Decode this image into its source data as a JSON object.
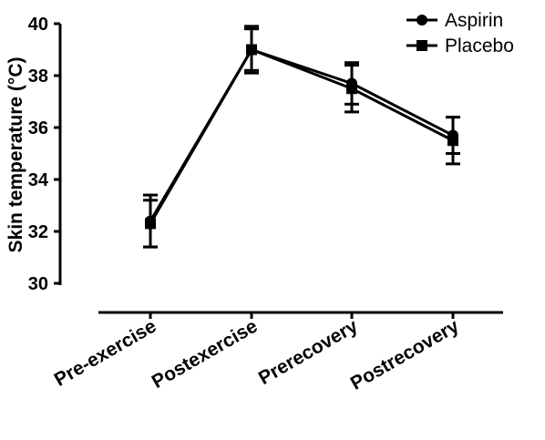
{
  "chart_data": {
    "type": "line",
    "title": "",
    "xlabel": "",
    "ylabel": "Skin temperature (°C)",
    "categories": [
      "Pre-exercise",
      "Postexercise",
      "Prerecovery",
      "Postrecovery"
    ],
    "ylim": [
      30,
      40
    ],
    "yticks": [
      30,
      32,
      34,
      36,
      38,
      40
    ],
    "grid": false,
    "legend_position": "top-right",
    "series": [
      {
        "name": "Aspirin",
        "marker": "circle",
        "color": "#000000",
        "values": [
          32.4,
          39.0,
          37.7,
          35.7
        ],
        "error": [
          1.0,
          0.9,
          0.8,
          0.7
        ]
      },
      {
        "name": "Placebo",
        "marker": "square",
        "color": "#000000",
        "values": [
          32.3,
          39.0,
          37.5,
          35.5
        ],
        "error": [
          0.9,
          0.8,
          0.9,
          0.9
        ]
      }
    ]
  }
}
